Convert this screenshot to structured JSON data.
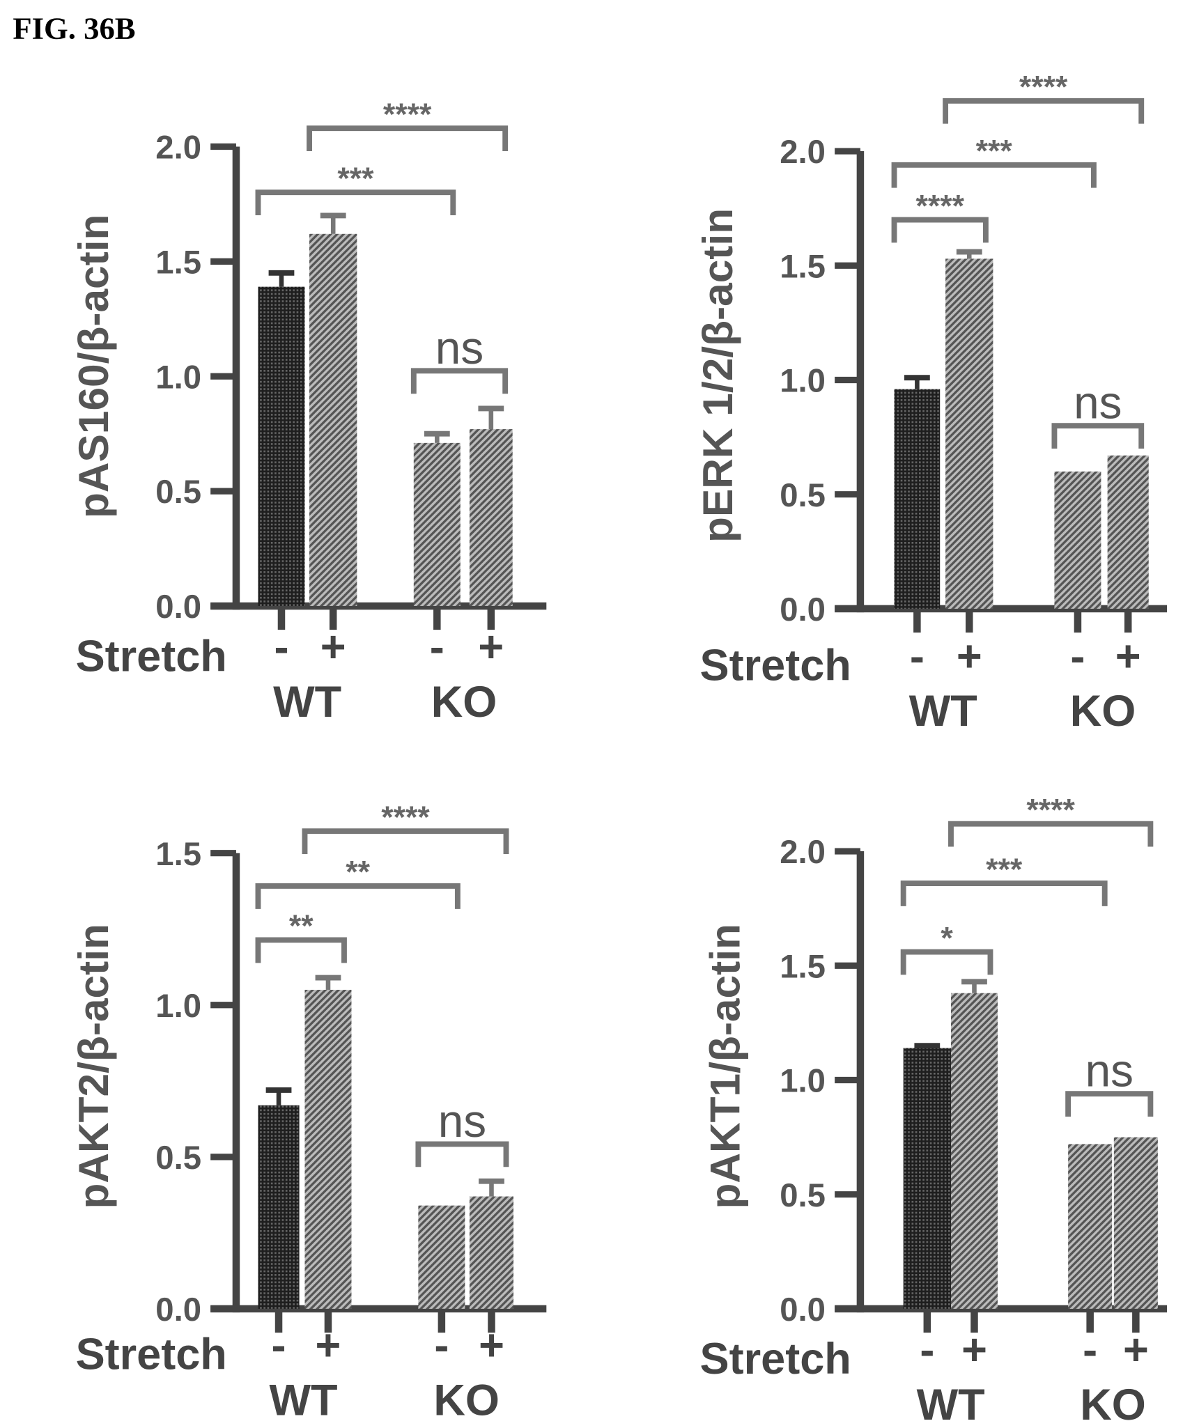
{
  "figure_title": "FIG. 36B",
  "colors": {
    "axis": "#444444",
    "dark_bar": "#2a2a2a",
    "hatch_bar": "#777777",
    "bracket": "#777777"
  },
  "chart_data": [
    {
      "type": "bar",
      "ylabel": "pAS160/β-actin",
      "ylim": [
        0,
        2.0
      ],
      "yticks": [
        "0.0",
        "0.5",
        "1.0",
        "1.5",
        "2.0"
      ],
      "row_label": "Stretch",
      "categories": [
        "WT -",
        "WT +",
        "KO -",
        "KO +"
      ],
      "stretch_signs": [
        "-",
        "+",
        "-",
        "+"
      ],
      "groups": [
        "WT",
        "KO"
      ],
      "values": [
        1.39,
        1.62,
        0.71,
        0.77
      ],
      "errors": [
        0.06,
        0.08,
        0.04,
        0.09
      ],
      "significance": [
        {
          "from": "WT -",
          "to": "KO -",
          "label": "***"
        },
        {
          "from": "WT +",
          "to": "KO +",
          "label": "****"
        },
        {
          "from": "KO -",
          "to": "KO +",
          "label": "ns"
        }
      ]
    },
    {
      "type": "bar",
      "ylabel": "pERK 1/2/β-actin",
      "ylim": [
        0,
        2.0
      ],
      "yticks": [
        "0.0",
        "0.5",
        "1.0",
        "1.5",
        "2.0"
      ],
      "row_label": "Stretch",
      "categories": [
        "WT -",
        "WT +",
        "KO -",
        "KO +"
      ],
      "stretch_signs": [
        "-",
        "+",
        "-",
        "+"
      ],
      "groups": [
        "WT",
        "KO"
      ],
      "values": [
        0.96,
        1.53,
        0.6,
        0.67
      ],
      "errors": [
        0.05,
        0.03,
        0.0,
        0.0
      ],
      "significance": [
        {
          "from": "WT -",
          "to": "WT +",
          "label": "****"
        },
        {
          "from": "WT -",
          "to": "KO -",
          "label": "***"
        },
        {
          "from": "WT +",
          "to": "KO +",
          "label": "****"
        },
        {
          "from": "KO -",
          "to": "KO +",
          "label": "ns"
        }
      ]
    },
    {
      "type": "bar",
      "ylabel": "pAKT2/β-actin",
      "ylim": [
        0,
        1.5
      ],
      "yticks": [
        "0.0",
        "0.5",
        "1.0",
        "1.5"
      ],
      "row_label": "Stretch",
      "categories": [
        "WT -",
        "WT +",
        "KO -",
        "KO +"
      ],
      "stretch_signs": [
        "-",
        "+",
        "-",
        "+"
      ],
      "groups": [
        "WT",
        "KO"
      ],
      "values": [
        0.67,
        1.05,
        0.34,
        0.37
      ],
      "errors": [
        0.05,
        0.04,
        0.0,
        0.05
      ],
      "significance": [
        {
          "from": "WT -",
          "to": "WT +",
          "label": "**"
        },
        {
          "from": "WT -",
          "to": "KO -",
          "label": "**"
        },
        {
          "from": "WT +",
          "to": "KO +",
          "label": "****"
        },
        {
          "from": "KO -",
          "to": "KO +",
          "label": "ns"
        }
      ]
    },
    {
      "type": "bar",
      "ylabel": "pAKT1/β-actin",
      "ylim": [
        0,
        2.0
      ],
      "yticks": [
        "0.0",
        "0.5",
        "1.0",
        "1.5",
        "2.0"
      ],
      "row_label": "Stretch",
      "categories": [
        "WT -",
        "WT +",
        "KO -",
        "KO +"
      ],
      "stretch_signs": [
        "-",
        "+",
        "-",
        "+"
      ],
      "groups": [
        "WT",
        "KO"
      ],
      "values": [
        1.14,
        1.38,
        0.72,
        0.75
      ],
      "errors": [
        0.01,
        0.05,
        0.0,
        0.0
      ],
      "significance": [
        {
          "from": "WT -",
          "to": "WT +",
          "label": "*"
        },
        {
          "from": "WT -",
          "to": "KO -",
          "label": "***"
        },
        {
          "from": "WT +",
          "to": "KO +",
          "label": "****"
        },
        {
          "from": "KO -",
          "to": "KO +",
          "label": "ns"
        }
      ]
    }
  ]
}
